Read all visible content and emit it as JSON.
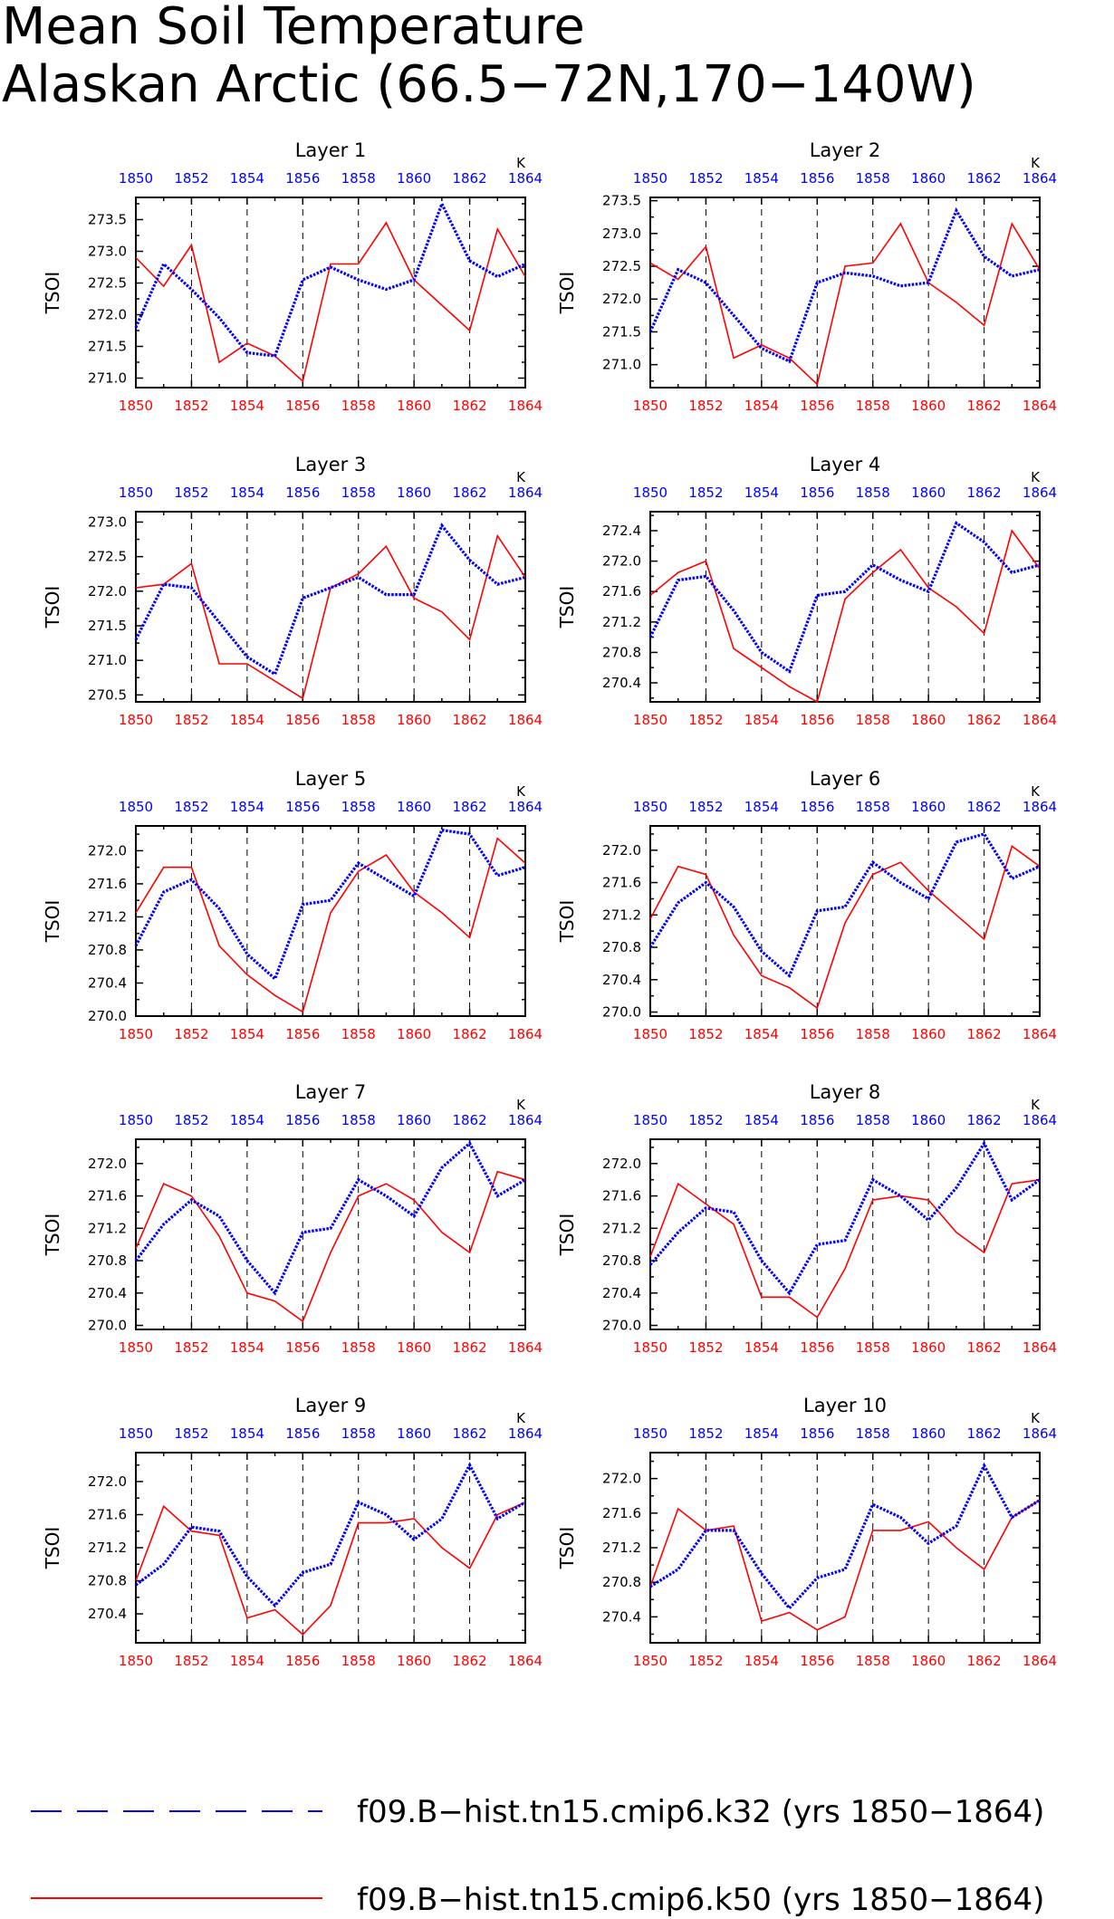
{
  "title_line1": "Mean Soil Temperature",
  "title_line2": "Alaskan Arctic (66.5−72N,170−140W)",
  "legend": [
    {
      "label": "f09.B−hist.tn15.cmip6.k32 (yrs 1850−1864)",
      "color": "#0000ff",
      "style": "dashed"
    },
    {
      "label": "f09.B−hist.tn15.cmip6.k50 (yrs 1850−1864)",
      "color": "#ff0000",
      "style": "solid"
    }
  ],
  "colors": {
    "k32": "#0000ff",
    "k50": "#ff0000"
  },
  "chart_data": [
    {
      "type": "line",
      "title": "Layer 1",
      "ylabel": "TSOI",
      "units_label": "K",
      "x": [
        1850,
        1851,
        1852,
        1853,
        1854,
        1855,
        1856,
        1857,
        1858,
        1859,
        1860,
        1861,
        1862,
        1863,
        1864
      ],
      "xticks": [
        1850,
        1852,
        1854,
        1856,
        1858,
        1860,
        1862,
        1864
      ],
      "yticks": [
        271.0,
        271.5,
        272.0,
        272.5,
        273.0,
        273.5
      ],
      "ylim": [
        270.85,
        273.85
      ],
      "series": [
        {
          "values": [
            271.8,
            272.8,
            272.4,
            271.95,
            271.4,
            271.35,
            272.55,
            272.75,
            272.55,
            272.4,
            272.55,
            273.75,
            272.85,
            272.6,
            272.8
          ]
        },
        {
          "values": [
            272.9,
            272.45,
            273.1,
            271.25,
            271.55,
            271.35,
            270.95,
            272.8,
            272.8,
            273.45,
            272.55,
            272.15,
            271.75,
            273.35,
            272.6
          ]
        }
      ]
    },
    {
      "type": "line",
      "title": "Layer 2",
      "ylabel": "TSOI",
      "units_label": "K",
      "x": [
        1850,
        1851,
        1852,
        1853,
        1854,
        1855,
        1856,
        1857,
        1858,
        1859,
        1860,
        1861,
        1862,
        1863,
        1864
      ],
      "xticks": [
        1850,
        1852,
        1854,
        1856,
        1858,
        1860,
        1862,
        1864
      ],
      "yticks": [
        271.0,
        271.5,
        272.0,
        272.5,
        273.0,
        273.5
      ],
      "ylim": [
        270.65,
        273.55
      ],
      "series": [
        {
          "values": [
            271.5,
            272.45,
            272.25,
            271.75,
            271.25,
            271.05,
            272.25,
            272.4,
            272.35,
            272.2,
            272.25,
            273.35,
            272.65,
            272.35,
            272.45
          ]
        },
        {
          "values": [
            272.55,
            272.3,
            272.8,
            271.1,
            271.3,
            271.1,
            270.7,
            272.5,
            272.55,
            273.15,
            272.25,
            271.95,
            271.6,
            273.15,
            272.45
          ]
        }
      ]
    },
    {
      "type": "line",
      "title": "Layer 3",
      "ylabel": "TSOI",
      "units_label": "K",
      "x": [
        1850,
        1851,
        1852,
        1853,
        1854,
        1855,
        1856,
        1857,
        1858,
        1859,
        1860,
        1861,
        1862,
        1863,
        1864
      ],
      "xticks": [
        1850,
        1852,
        1854,
        1856,
        1858,
        1860,
        1862,
        1864
      ],
      "yticks": [
        270.5,
        271.0,
        271.5,
        272.0,
        272.5,
        273.0
      ],
      "ylim": [
        270.4,
        273.15
      ],
      "series": [
        {
          "values": [
            271.3,
            272.1,
            272.05,
            271.55,
            271.05,
            270.8,
            271.9,
            272.05,
            272.2,
            271.95,
            271.95,
            272.95,
            272.45,
            272.1,
            272.2
          ]
        },
        {
          "values": [
            272.05,
            272.1,
            272.4,
            270.95,
            270.95,
            270.7,
            270.45,
            272.05,
            272.25,
            272.65,
            271.9,
            271.7,
            271.3,
            272.8,
            272.2
          ]
        }
      ]
    },
    {
      "type": "line",
      "title": "Layer 4",
      "ylabel": "TSOI",
      "units_label": "K",
      "x": [
        1850,
        1851,
        1852,
        1853,
        1854,
        1855,
        1856,
        1857,
        1858,
        1859,
        1860,
        1861,
        1862,
        1863,
        1864
      ],
      "xticks": [
        1850,
        1852,
        1854,
        1856,
        1858,
        1860,
        1862,
        1864
      ],
      "yticks": [
        270.4,
        270.8,
        271.2,
        271.6,
        272.0,
        272.4
      ],
      "ylim": [
        270.15,
        272.65
      ],
      "series": [
        {
          "values": [
            271.0,
            271.75,
            271.8,
            271.35,
            270.8,
            270.55,
            271.55,
            271.6,
            271.95,
            271.75,
            271.6,
            272.5,
            272.25,
            271.85,
            271.95
          ]
        },
        {
          "values": [
            271.55,
            271.85,
            272.0,
            270.85,
            270.6,
            270.35,
            270.15,
            271.5,
            271.85,
            272.15,
            271.65,
            271.4,
            271.05,
            272.4,
            271.9
          ]
        }
      ]
    },
    {
      "type": "line",
      "title": "Layer 5",
      "ylabel": "TSOI",
      "units_label": "K",
      "x": [
        1850,
        1851,
        1852,
        1853,
        1854,
        1855,
        1856,
        1857,
        1858,
        1859,
        1860,
        1861,
        1862,
        1863,
        1864
      ],
      "xticks": [
        1850,
        1852,
        1854,
        1856,
        1858,
        1860,
        1862,
        1864
      ],
      "yticks": [
        270.0,
        270.4,
        270.8,
        271.2,
        271.6,
        272.0
      ],
      "ylim": [
        270.0,
        272.3
      ],
      "series": [
        {
          "values": [
            270.85,
            271.5,
            271.65,
            271.3,
            270.75,
            270.45,
            271.35,
            271.4,
            271.85,
            271.65,
            271.45,
            272.25,
            272.2,
            271.7,
            271.8
          ]
        },
        {
          "values": [
            271.25,
            271.8,
            271.8,
            270.85,
            270.5,
            270.25,
            270.05,
            271.25,
            271.75,
            271.95,
            271.5,
            271.25,
            270.95,
            272.15,
            271.85
          ]
        }
      ]
    },
    {
      "type": "line",
      "title": "Layer 6",
      "ylabel": "TSOI",
      "units_label": "K",
      "x": [
        1850,
        1851,
        1852,
        1853,
        1854,
        1855,
        1856,
        1857,
        1858,
        1859,
        1860,
        1861,
        1862,
        1863,
        1864
      ],
      "xticks": [
        1850,
        1852,
        1854,
        1856,
        1858,
        1860,
        1862,
        1864
      ],
      "yticks": [
        270.0,
        270.4,
        270.8,
        271.2,
        271.6,
        272.0
      ],
      "ylim": [
        269.95,
        272.3
      ],
      "series": [
        {
          "values": [
            270.8,
            271.35,
            271.6,
            271.3,
            270.75,
            270.45,
            271.25,
            271.3,
            271.85,
            271.6,
            271.4,
            272.1,
            272.2,
            271.65,
            271.8
          ]
        },
        {
          "values": [
            271.15,
            271.8,
            271.7,
            270.95,
            270.45,
            270.3,
            270.05,
            271.1,
            271.7,
            271.85,
            271.5,
            271.2,
            270.9,
            272.05,
            271.8
          ]
        }
      ]
    },
    {
      "type": "line",
      "title": "Layer 7",
      "ylabel": "TSOI",
      "units_label": "K",
      "x": [
        1850,
        1851,
        1852,
        1853,
        1854,
        1855,
        1856,
        1857,
        1858,
        1859,
        1860,
        1861,
        1862,
        1863,
        1864
      ],
      "xticks": [
        1850,
        1852,
        1854,
        1856,
        1858,
        1860,
        1862,
        1864
      ],
      "yticks": [
        270.0,
        270.4,
        270.8,
        271.2,
        271.6,
        272.0
      ],
      "ylim": [
        269.95,
        272.3
      ],
      "series": [
        {
          "values": [
            270.8,
            271.25,
            271.55,
            271.35,
            270.8,
            270.4,
            271.15,
            271.2,
            271.8,
            271.6,
            271.35,
            271.95,
            272.25,
            271.6,
            271.8
          ]
        },
        {
          "values": [
            270.95,
            271.75,
            271.6,
            271.1,
            270.4,
            270.3,
            270.05,
            270.9,
            271.6,
            271.75,
            271.55,
            271.15,
            270.9,
            271.9,
            271.8
          ]
        }
      ]
    },
    {
      "type": "line",
      "title": "Layer 8",
      "ylabel": "TSOI",
      "units_label": "K",
      "x": [
        1850,
        1851,
        1852,
        1853,
        1854,
        1855,
        1856,
        1857,
        1858,
        1859,
        1860,
        1861,
        1862,
        1863,
        1864
      ],
      "xticks": [
        1850,
        1852,
        1854,
        1856,
        1858,
        1860,
        1862,
        1864
      ],
      "yticks": [
        270.0,
        270.4,
        270.8,
        271.2,
        271.6,
        272.0
      ],
      "ylim": [
        269.95,
        272.3
      ],
      "series": [
        {
          "values": [
            270.75,
            271.15,
            271.45,
            271.4,
            270.8,
            270.4,
            271.0,
            271.05,
            271.8,
            271.6,
            271.3,
            271.7,
            272.25,
            271.55,
            271.8
          ]
        },
        {
          "values": [
            270.85,
            271.75,
            271.5,
            271.25,
            270.35,
            270.35,
            270.1,
            270.7,
            271.55,
            271.6,
            271.55,
            271.15,
            270.9,
            271.75,
            271.8
          ]
        }
      ]
    },
    {
      "type": "line",
      "title": "Layer 9",
      "ylabel": "TSOI",
      "units_label": "K",
      "x": [
        1850,
        1851,
        1852,
        1853,
        1854,
        1855,
        1856,
        1857,
        1858,
        1859,
        1860,
        1861,
        1862,
        1863,
        1864
      ],
      "xticks": [
        1850,
        1852,
        1854,
        1856,
        1858,
        1860,
        1862,
        1864
      ],
      "yticks": [
        270.4,
        270.8,
        271.2,
        271.6,
        272.0
      ],
      "ylim": [
        270.05,
        272.35
      ],
      "series": [
        {
          "values": [
            270.75,
            271.0,
            271.45,
            271.4,
            270.85,
            270.5,
            270.9,
            271.0,
            271.75,
            271.6,
            271.3,
            271.55,
            272.2,
            271.55,
            271.75
          ]
        },
        {
          "values": [
            270.8,
            271.7,
            271.4,
            271.35,
            270.35,
            270.45,
            270.15,
            270.5,
            271.5,
            271.5,
            271.55,
            271.2,
            270.95,
            271.6,
            271.75
          ]
        }
      ]
    },
    {
      "type": "line",
      "title": "Layer 10",
      "ylabel": "TSOI",
      "units_label": "K",
      "x": [
        1850,
        1851,
        1852,
        1853,
        1854,
        1855,
        1856,
        1857,
        1858,
        1859,
        1860,
        1861,
        1862,
        1863,
        1864
      ],
      "xticks": [
        1850,
        1852,
        1854,
        1856,
        1858,
        1860,
        1862,
        1864
      ],
      "yticks": [
        270.4,
        270.8,
        271.2,
        271.6,
        272.0
      ],
      "ylim": [
        270.1,
        272.3
      ],
      "series": [
        {
          "values": [
            270.75,
            270.95,
            271.4,
            271.4,
            270.9,
            270.5,
            270.85,
            270.95,
            271.7,
            271.55,
            271.25,
            271.45,
            272.15,
            271.55,
            271.75
          ]
        },
        {
          "values": [
            270.75,
            271.65,
            271.4,
            271.45,
            270.35,
            270.45,
            270.25,
            270.4,
            271.4,
            271.4,
            271.5,
            271.2,
            270.95,
            271.55,
            271.75
          ]
        }
      ]
    }
  ]
}
